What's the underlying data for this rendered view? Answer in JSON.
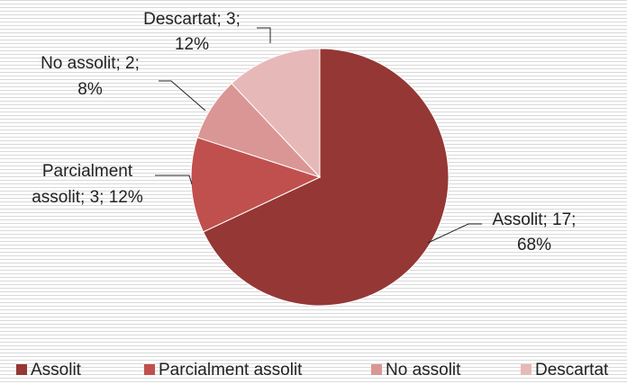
{
  "chart_data": {
    "type": "pie",
    "categories": [
      "Assolit",
      "Parcialment assolit",
      "No assolit",
      "Descartat"
    ],
    "values": [
      17,
      3,
      2,
      3
    ],
    "value_labels": [
      [
        "Assolit; 17;",
        "68%"
      ],
      [
        "Parcialment",
        "assolit; 3; 12%"
      ],
      [
        "No assolit; 2;",
        "8%"
      ],
      [
        "Descartat; 3;",
        "12%"
      ]
    ],
    "colors": [
      "#953735",
      "#c0504d",
      "#d99694",
      "#e6b9b8"
    ],
    "legend": "bottom"
  }
}
